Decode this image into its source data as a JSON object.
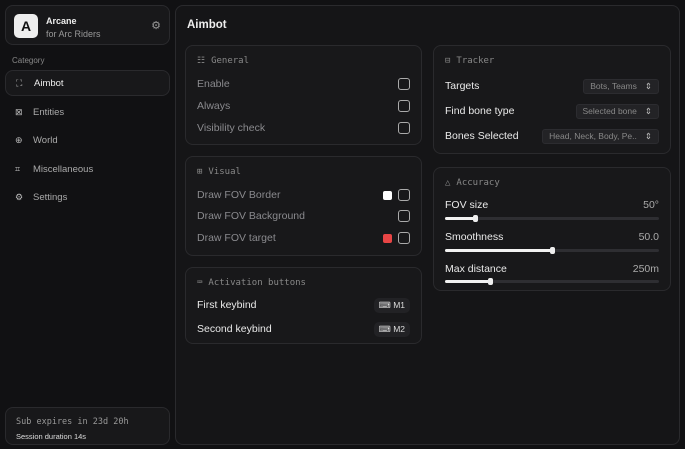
{
  "brand": {
    "logo": "A",
    "name": "Arcane",
    "subtitle": "for Arc Riders",
    "icon": "settings-gear-icon"
  },
  "sidebar": {
    "category_label": "Category",
    "items": [
      {
        "label": "Aimbot",
        "icon": "crosshair-icon",
        "active": true
      },
      {
        "label": "Entities",
        "icon": "entities-icon"
      },
      {
        "label": "World",
        "icon": "globe-icon"
      },
      {
        "label": "Miscellaneous",
        "icon": "grid-icon"
      },
      {
        "label": "Settings",
        "icon": "gear-icon"
      }
    ]
  },
  "subscription": {
    "expires": "Sub expires in 23d 20h",
    "session": "Session duration 14s"
  },
  "main": {
    "title": "Aimbot"
  },
  "general": {
    "title": "General",
    "rows": [
      {
        "label": "Enable",
        "checked": false
      },
      {
        "label": "Always",
        "checked": false
      },
      {
        "label": "Visibility check",
        "checked": false
      }
    ]
  },
  "visual": {
    "title": "Visual",
    "rows": [
      {
        "label": "Draw FOV Border",
        "color": "#ffffff",
        "checked": false
      },
      {
        "label": "Draw FOV Background",
        "checked": false
      },
      {
        "label": "Draw FOV target",
        "color": "#e84545",
        "checked": false
      }
    ]
  },
  "activation": {
    "title": "Activation buttons",
    "rows": [
      {
        "label": "First keybind",
        "key": "M1"
      },
      {
        "label": "Second keybind",
        "key": "M2"
      }
    ]
  },
  "tracker": {
    "title": "Tracker",
    "rows": [
      {
        "label": "Targets",
        "value": "Bots, Teams"
      },
      {
        "label": "Find bone type",
        "value": "Selected bone"
      },
      {
        "label": "Bones Selected",
        "value": "Head, Neck, Body, Pe.."
      }
    ]
  },
  "accuracy": {
    "title": "Accuracy",
    "sliders": [
      {
        "label": "FOV size",
        "value": "50°",
        "fraction": 0.14
      },
      {
        "label": "Smoothness",
        "value": "50.0",
        "fraction": 0.5
      },
      {
        "label": "Max distance",
        "value": "250m",
        "fraction": 0.21
      }
    ]
  }
}
